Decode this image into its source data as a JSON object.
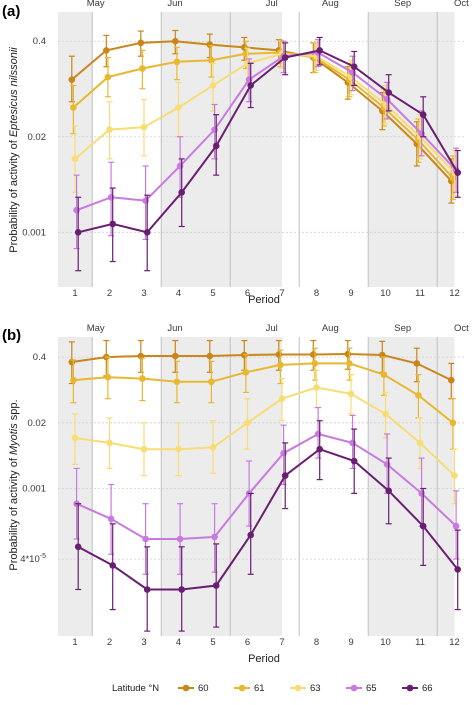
{
  "chart_data": [
    {
      "panel_label": "(a)",
      "type": "line",
      "xlabel": "Period",
      "ylabel_prefix": "Probability of activity of ",
      "ylabel_species": "Eptesicus nilssonii",
      "x": [
        1,
        2,
        3,
        4,
        5,
        6,
        7,
        8,
        9,
        10,
        11,
        12
      ],
      "y_scale": "log",
      "y_ticks": [
        "0.4",
        "0.02",
        "0.001"
      ],
      "months": [
        "May",
        "Jun",
        "Jul",
        "Aug",
        "Sep",
        "Oct"
      ],
      "series": [
        {
          "name": "60",
          "color": "#C9861A",
          "values": [
            0.12,
            0.3,
            0.38,
            0.4,
            0.36,
            0.33,
            0.3,
            0.24,
            0.11,
            0.045,
            0.016,
            0.005
          ],
          "upper": [
            0.25,
            0.48,
            0.55,
            0.56,
            0.5,
            0.45,
            0.42,
            0.38,
            0.18,
            0.08,
            0.032,
            0.01
          ],
          "lower": [
            0.06,
            0.18,
            0.25,
            0.27,
            0.24,
            0.22,
            0.2,
            0.15,
            0.065,
            0.025,
            0.008,
            0.0025
          ]
        },
        {
          "name": "61",
          "color": "#E8B830",
          "values": [
            0.05,
            0.13,
            0.17,
            0.21,
            0.22,
            0.27,
            0.28,
            0.24,
            0.12,
            0.05,
            0.018,
            0.0055
          ],
          "upper": [
            0.1,
            0.24,
            0.3,
            0.33,
            0.35,
            0.4,
            0.41,
            0.38,
            0.2,
            0.09,
            0.035,
            0.011
          ],
          "lower": [
            0.022,
            0.07,
            0.09,
            0.12,
            0.13,
            0.17,
            0.18,
            0.15,
            0.07,
            0.028,
            0.009,
            0.0028
          ]
        },
        {
          "name": "63",
          "color": "#F7DD74",
          "values": [
            0.01,
            0.025,
            0.027,
            0.05,
            0.1,
            0.2,
            0.27,
            0.25,
            0.13,
            0.055,
            0.02,
            0.0065
          ],
          "upper": [
            0.028,
            0.06,
            0.064,
            0.11,
            0.2,
            0.32,
            0.4,
            0.39,
            0.22,
            0.1,
            0.04,
            0.013
          ],
          "lower": [
            0.0035,
            0.01,
            0.011,
            0.02,
            0.045,
            0.11,
            0.17,
            0.16,
            0.075,
            0.03,
            0.01,
            0.0032
          ]
        },
        {
          "name": "65",
          "color": "#C77BE0",
          "values": [
            0.002,
            0.003,
            0.0027,
            0.008,
            0.025,
            0.12,
            0.25,
            0.28,
            0.15,
            0.065,
            0.022,
            0.007
          ],
          "upper": [
            0.006,
            0.009,
            0.008,
            0.02,
            0.055,
            0.23,
            0.4,
            0.42,
            0.25,
            0.11,
            0.045,
            0.014
          ],
          "lower": [
            0.0006,
            0.0009,
            0.0008,
            0.003,
            0.01,
            0.06,
            0.15,
            0.18,
            0.085,
            0.035,
            0.011,
            0.0035
          ]
        },
        {
          "name": "66",
          "color": "#6A1E72",
          "values": [
            0.001,
            0.0013,
            0.001,
            0.0035,
            0.015,
            0.1,
            0.24,
            0.3,
            0.18,
            0.08,
            0.04,
            0.0065
          ],
          "upper": [
            0.003,
            0.004,
            0.0032,
            0.01,
            0.04,
            0.2,
            0.38,
            0.45,
            0.29,
            0.14,
            0.07,
            0.013
          ],
          "lower": [
            0.0003,
            0.0004,
            0.0003,
            0.0012,
            0.006,
            0.05,
            0.14,
            0.19,
            0.1,
            0.045,
            0.02,
            0.003
          ]
        }
      ]
    },
    {
      "panel_label": "(b)",
      "type": "line",
      "xlabel": "Period",
      "ylabel_prefix": "Probability of activity of ",
      "ylabel_species": "Myotis",
      "ylabel_suffix": " spp.",
      "x": [
        1,
        2,
        3,
        4,
        5,
        6,
        7,
        8,
        9,
        10,
        11,
        12
      ],
      "y_scale": "log",
      "y_ticks": [
        "0.4",
        "0.02",
        "0.001",
        "4*10"
      ],
      "y_tick_exponent": "-5",
      "months": [
        "May",
        "Jun",
        "Jul",
        "Aug",
        "Sep",
        "Oct"
      ],
      "series": [
        {
          "name": "60",
          "color": "#C9861A",
          "values": [
            0.32,
            0.4,
            0.42,
            0.42,
            0.42,
            0.44,
            0.45,
            0.45,
            0.46,
            0.44,
            0.3,
            0.14
          ],
          "upper": [
            0.8,
            0.85,
            0.85,
            0.85,
            0.85,
            0.85,
            0.85,
            0.85,
            0.85,
            0.82,
            0.6,
            0.3
          ],
          "lower": [
            0.12,
            0.17,
            0.2,
            0.2,
            0.2,
            0.22,
            0.22,
            0.22,
            0.23,
            0.2,
            0.13,
            0.06
          ]
        },
        {
          "name": "61",
          "color": "#E8B830",
          "values": [
            0.14,
            0.16,
            0.15,
            0.13,
            0.13,
            0.2,
            0.28,
            0.3,
            0.3,
            0.18,
            0.07,
            0.02
          ],
          "upper": [
            0.35,
            0.4,
            0.38,
            0.33,
            0.33,
            0.45,
            0.55,
            0.6,
            0.6,
            0.4,
            0.18,
            0.06
          ],
          "lower": [
            0.05,
            0.06,
            0.055,
            0.05,
            0.05,
            0.08,
            0.12,
            0.14,
            0.14,
            0.07,
            0.025,
            0.006
          ]
        },
        {
          "name": "63",
          "color": "#F7DD74",
          "values": [
            0.01,
            0.008,
            0.006,
            0.006,
            0.0065,
            0.02,
            0.06,
            0.1,
            0.075,
            0.03,
            0.008,
            0.0018
          ],
          "upper": [
            0.03,
            0.025,
            0.02,
            0.02,
            0.022,
            0.06,
            0.15,
            0.22,
            0.18,
            0.08,
            0.025,
            0.006
          ],
          "lower": [
            0.003,
            0.0025,
            0.0018,
            0.0018,
            0.002,
            0.006,
            0.022,
            0.04,
            0.03,
            0.01,
            0.0025,
            0.0005
          ]
        },
        {
          "name": "65",
          "color": "#C77BE0",
          "values": [
            0.0005,
            0.00025,
            0.0001,
            0.0001,
            0.00011,
            0.0008,
            0.005,
            0.012,
            0.008,
            0.003,
            0.0008,
            0.00018
          ],
          "upper": [
            0.0025,
            0.0012,
            0.0005,
            0.0005,
            0.0005,
            0.0035,
            0.018,
            0.04,
            0.028,
            0.012,
            0.004,
            0.0009
          ],
          "lower": [
            0.0001,
            5e-05,
            2e-05,
            2e-05,
            2.2e-05,
            0.00018,
            0.0012,
            0.004,
            0.0025,
            0.0008,
            0.00018,
            4e-05
          ]
        },
        {
          "name": "66",
          "color": "#6A1E72",
          "values": [
            7e-05,
            3e-05,
            1e-05,
            1e-05,
            1.2e-05,
            0.00012,
            0.0018,
            0.006,
            0.0035,
            0.0009,
            0.00018,
            2.5e-05
          ],
          "upper": [
            0.0005,
            0.0002,
            7e-05,
            7e-05,
            8e-05,
            0.0008,
            0.008,
            0.022,
            0.015,
            0.004,
            0.001,
            0.00015
          ],
          "lower": [
            1e-05,
            4e-06,
            1.5e-06,
            1.5e-06,
            1.8e-06,
            2e-05,
            0.0004,
            0.0015,
            0.0008,
            0.0002,
            3e-05,
            4e-06
          ]
        }
      ]
    }
  ],
  "legend": {
    "title": "Latitude °N",
    "entries": [
      "60",
      "61",
      "63",
      "65",
      "66"
    ],
    "position": "bottom"
  }
}
